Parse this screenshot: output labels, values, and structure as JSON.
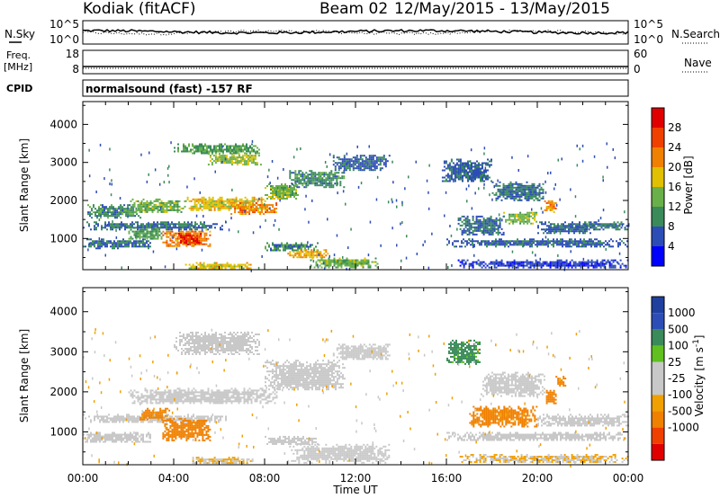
{
  "header": {
    "station": "Kodiak (fitACF)",
    "beam": "Beam 02",
    "dates": "12/May/2015 - 13/May/2015"
  },
  "top_panels": {
    "nsky_label": "N.Sky",
    "nsky_ticks": [
      "10^5",
      "10^0"
    ],
    "nsearch_label": "N.Search",
    "nsearch_ticks": [
      "10^5",
      "10^0"
    ],
    "freq_label_1": "Freq.",
    "freq_label_2": "[MHz]",
    "freq_ticks": [
      "18",
      "8"
    ],
    "nave_label": "Nave",
    "nave_ticks": [
      "60",
      "0"
    ],
    "cpid_label": "CPID",
    "cpid_text": "normalsound (fast) -157 RF"
  },
  "colors": {
    "power_scale": [
      "#0000ff",
      "#2d4db6",
      "#3a8a5a",
      "#6ab04a",
      "#e0c000",
      "#f08000",
      "#f04000",
      "#e00000"
    ],
    "velocity_scale": [
      "#e00000",
      "#f04000",
      "#f08000",
      "#f0a000",
      "#c8c8c8",
      "#c8c8c8",
      "#60c020",
      "#3a8a5a",
      "#2d4db6",
      "#2040a0"
    ],
    "ground_scatter": "#c8c8c8"
  },
  "chart_data": [
    {
      "type": "heatmap",
      "title": "Power",
      "xlabel": "Time UT",
      "ylabel": "Slant Range [km]",
      "x_ticks": [
        "00:00",
        "04:00",
        "08:00",
        "12:00",
        "16:00",
        "20:00",
        "00:00"
      ],
      "x_range_hours": [
        0,
        24
      ],
      "y_ticks": [
        1000,
        2000,
        3000,
        4000
      ],
      "ylim": [
        180,
        4600
      ],
      "colorbar_label": "Power [dB]",
      "colorbar_ticks": [
        4,
        8,
        12,
        16,
        20,
        24,
        28
      ],
      "zlim": [
        0,
        32
      ],
      "regions": [
        {
          "t0": 0.0,
          "t1": 6.3,
          "r0": 1250,
          "r1": 1450,
          "value": 8
        },
        {
          "t0": 0.2,
          "t1": 2.5,
          "r0": 1550,
          "r1": 1900,
          "value": 10
        },
        {
          "t0": 2.0,
          "t1": 4.5,
          "r0": 1700,
          "r1": 2050,
          "value": 14
        },
        {
          "t0": 4.5,
          "t1": 8.0,
          "r0": 1750,
          "r1": 2100,
          "value": 18
        },
        {
          "t0": 6.5,
          "t1": 8.5,
          "r0": 1650,
          "r1": 1950,
          "value": 22
        },
        {
          "t0": 8.0,
          "t1": 9.5,
          "r0": 2050,
          "r1": 2450,
          "value": 14
        },
        {
          "t0": 9.0,
          "t1": 11.5,
          "r0": 2350,
          "r1": 2800,
          "value": 10
        },
        {
          "t0": 11.0,
          "t1": 13.5,
          "r0": 2800,
          "r1": 3200,
          "value": 7
        },
        {
          "t0": 4.0,
          "t1": 7.8,
          "r0": 3250,
          "r1": 3500,
          "value": 12
        },
        {
          "t0": 5.5,
          "t1": 7.8,
          "r0": 2950,
          "r1": 3250,
          "value": 15
        },
        {
          "t0": 3.5,
          "t1": 5.6,
          "r0": 800,
          "r1": 1250,
          "value": 22
        },
        {
          "t0": 4.2,
          "t1": 5.2,
          "r0": 850,
          "r1": 1150,
          "value": 28
        },
        {
          "t0": 2.0,
          "t1": 3.5,
          "r0": 1000,
          "r1": 1300,
          "value": 12
        },
        {
          "t0": 0.0,
          "t1": 3.0,
          "r0": 750,
          "r1": 1000,
          "value": 8
        },
        {
          "t0": 8.0,
          "t1": 10.3,
          "r0": 700,
          "r1": 900,
          "value": 10
        },
        {
          "t0": 9.0,
          "t1": 10.8,
          "r0": 500,
          "r1": 720,
          "value": 20
        },
        {
          "t0": 10.0,
          "t1": 13.0,
          "r0": 250,
          "r1": 500,
          "value": 14
        },
        {
          "t0": 4.5,
          "t1": 7.5,
          "r0": 220,
          "r1": 380,
          "value": 18
        },
        {
          "t0": 15.8,
          "t1": 18.0,
          "r0": 2500,
          "r1": 3100,
          "value": 7
        },
        {
          "t0": 18.0,
          "t1": 20.3,
          "r0": 2000,
          "r1": 2500,
          "value": 8
        },
        {
          "t0": 16.5,
          "t1": 18.5,
          "r0": 1100,
          "r1": 1600,
          "value": 8
        },
        {
          "t0": 18.5,
          "t1": 20.0,
          "r0": 1400,
          "r1": 1700,
          "value": 14
        },
        {
          "t0": 20.0,
          "t1": 22.5,
          "r0": 1150,
          "r1": 1450,
          "value": 7
        },
        {
          "t0": 22.0,
          "t1": 24.0,
          "r0": 1250,
          "r1": 1450,
          "value": 8
        },
        {
          "t0": 16.0,
          "t1": 24.0,
          "r0": 800,
          "r1": 1000,
          "value": 7
        },
        {
          "t0": 16.5,
          "t1": 24.0,
          "r0": 250,
          "r1": 450,
          "value": 5
        },
        {
          "t0": 20.3,
          "t1": 20.8,
          "r0": 1700,
          "r1": 2050,
          "value": 22
        }
      ]
    },
    {
      "type": "heatmap",
      "title": "Velocity",
      "xlabel": "Time UT",
      "ylabel": "Slant Range [km]",
      "x_ticks": [
        "00:00",
        "04:00",
        "08:00",
        "12:00",
        "16:00",
        "20:00",
        "00:00"
      ],
      "x_range_hours": [
        0,
        24
      ],
      "y_ticks": [
        1000,
        2000,
        3000,
        4000
      ],
      "ylim": [
        180,
        4600
      ],
      "colorbar_label": "Velocity [m s^-1]",
      "colorbar_ticks": [
        "1000",
        "500",
        "100",
        "25",
        "-25",
        "-100",
        "-500",
        "-1000"
      ],
      "regions": [
        {
          "t0": 0.0,
          "t1": 6.3,
          "r0": 1250,
          "r1": 1450,
          "value": 0
        },
        {
          "t0": 2.0,
          "t1": 8.5,
          "r0": 1700,
          "r1": 2100,
          "value": 0
        },
        {
          "t0": 8.0,
          "t1": 11.5,
          "r0": 2050,
          "r1": 2800,
          "value": 0
        },
        {
          "t0": 11.0,
          "t1": 13.5,
          "r0": 2800,
          "r1": 3200,
          "value": 0
        },
        {
          "t0": 4.0,
          "t1": 7.8,
          "r0": 2950,
          "r1": 3500,
          "value": 0
        },
        {
          "t0": 3.5,
          "t1": 5.6,
          "r0": 800,
          "r1": 1350,
          "value": -300
        },
        {
          "t0": 2.5,
          "t1": 3.8,
          "r0": 1300,
          "r1": 1600,
          "value": -150
        },
        {
          "t0": 0.0,
          "t1": 3.0,
          "r0": 750,
          "r1": 1000,
          "value": 0
        },
        {
          "t0": 8.0,
          "t1": 10.3,
          "r0": 700,
          "r1": 900,
          "value": 0
        },
        {
          "t0": 9.0,
          "t1": 13.5,
          "r0": 250,
          "r1": 700,
          "value": 0
        },
        {
          "t0": 4.5,
          "t1": 7.5,
          "r0": 220,
          "r1": 380,
          "value": -60
        },
        {
          "t0": 16.0,
          "t1": 17.5,
          "r0": 2700,
          "r1": 3300,
          "value": 150
        },
        {
          "t0": 17.5,
          "t1": 20.3,
          "r0": 1900,
          "r1": 2500,
          "value": 0
        },
        {
          "t0": 17.0,
          "t1": 20.0,
          "r0": 1150,
          "r1": 1650,
          "value": -150
        },
        {
          "t0": 20.0,
          "t1": 24.0,
          "r0": 1150,
          "r1": 1450,
          "value": 0
        },
        {
          "t0": 16.0,
          "t1": 24.0,
          "r0": 800,
          "r1": 1000,
          "value": 0
        },
        {
          "t0": 16.5,
          "t1": 24.0,
          "r0": 250,
          "r1": 450,
          "value": -60
        },
        {
          "t0": 20.3,
          "t1": 20.8,
          "r0": 1700,
          "r1": 2050,
          "value": -300
        },
        {
          "t0": 20.8,
          "t1": 21.2,
          "r0": 2150,
          "r1": 2400,
          "value": -150
        }
      ]
    }
  ]
}
